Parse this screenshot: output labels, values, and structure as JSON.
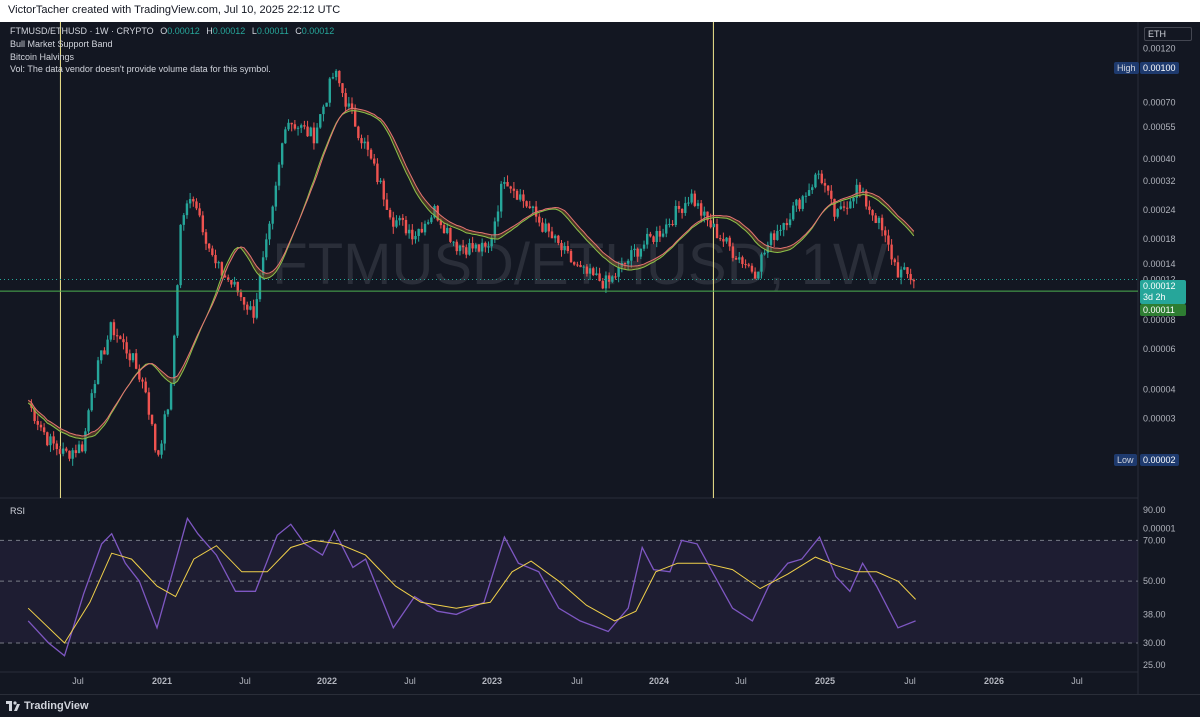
{
  "header": {
    "credit": "VictorTacher created with TradingView.com, Jul 10, 2025 22:12 UTC"
  },
  "legend": {
    "symbol": "FTMUSD/ETHUSD · 1W · CRYPTO",
    "o_label": "O",
    "o": "0.00012",
    "h_label": "H",
    "h": "0.00012",
    "l_label": "L",
    "l": "0.00011",
    "c_label": "C",
    "c": "0.00012",
    "line2": "Bull Market Support Band",
    "line3": "Bitcoin Halvings",
    "line4": "Vol: The data vendor doesn't provide volume data for this symbol."
  },
  "watermark": "FTMUSD/ETHUSD, 1W",
  "currency_badge": "ETH",
  "price_tags": {
    "high_label": "High",
    "high_value": "0.00100",
    "low_label": "Low",
    "low_value": "0.00002",
    "current": "0.00012",
    "countdown": "3d 2h",
    "support": "0.00011"
  },
  "rsi_label": "RSI",
  "footer": {
    "brand": "TradingView"
  },
  "colors": {
    "up": "#26a69a",
    "down": "#ef5350",
    "rsi": "#7e57c2",
    "rsi_ma": "#f0d04a",
    "halving": "#f0e68c",
    "support": "#4caf50",
    "band": "#8b5a2b"
  },
  "chart_data": [
    {
      "type": "candlestick",
      "title": "FTMUSD/ETHUSD · 1W · CRYPTO",
      "scale": "log",
      "y_ticks": [
        "0.00120",
        "0.00100",
        "0.00070",
        "0.00055",
        "0.00040",
        "0.00032",
        "0.00024",
        "0.00018",
        "0.00014",
        "0.00012",
        "0.00011",
        "0.00008",
        "0.00006",
        "0.00004",
        "0.00003",
        "0.00002",
        "0.00001"
      ],
      "x_ticks": [
        "Jul",
        "2021",
        "Jul",
        "2022",
        "Jul",
        "2023",
        "Jul",
        "2024",
        "Jul",
        "2025",
        "Jul",
        "2026",
        "Jul"
      ],
      "grid": false,
      "close_path": [
        [
          "2020-03-01",
          3.5e-05
        ],
        [
          "2020-04-15",
          2.4e-05
        ],
        [
          "2020-05-20",
          2.1e-05
        ],
        [
          "2020-07-01",
          2.3e-05
        ],
        [
          "2020-07-20",
          4.2e-05
        ],
        [
          "2020-09-01",
          7.5e-05
        ],
        [
          "2020-10-15",
          5.5e-05
        ],
        [
          "2020-11-15",
          4e-05
        ],
        [
          "2020-12-10",
          2e-05
        ],
        [
          "2021-01-10",
          4e-05
        ],
        [
          "2021-02-01",
          0.00022
        ],
        [
          "2021-03-01",
          0.00028
        ],
        [
          "2021-04-15",
          0.00014
        ],
        [
          "2021-06-01",
          0.00011
        ],
        [
          "2021-07-10",
          8.5e-05
        ],
        [
          "2021-08-20",
          0.00022
        ],
        [
          "2021-09-20",
          0.0006
        ],
        [
          "2021-10-20",
          0.00055
        ],
        [
          "2021-11-20",
          0.0005
        ],
        [
          "2022-01-05",
          0.00095
        ],
        [
          "2022-02-01",
          0.0007
        ],
        [
          "2022-03-15",
          0.00045
        ],
        [
          "2022-05-15",
          0.00022
        ],
        [
          "2022-07-01",
          0.00019
        ],
        [
          "2022-08-15",
          0.00024
        ],
        [
          "2022-10-01",
          0.00017
        ],
        [
          "2022-12-10",
          0.00016
        ],
        [
          "2023-01-15",
          0.00034
        ],
        [
          "2023-03-01",
          0.00026
        ],
        [
          "2023-05-01",
          0.00018
        ],
        [
          "2023-07-01",
          0.00013
        ],
        [
          "2023-09-01",
          0.000115
        ],
        [
          "2023-11-01",
          0.00016
        ],
        [
          "2024-01-01",
          0.0002
        ],
        [
          "2024-03-01",
          0.00028
        ],
        [
          "2024-04-01",
          0.00022
        ],
        [
          "2024-06-01",
          0.00016
        ],
        [
          "2024-07-20",
          0.00013
        ],
        [
          "2024-09-01",
          0.00019
        ],
        [
          "2024-11-01",
          0.00027
        ],
        [
          "2024-12-10",
          0.00035
        ],
        [
          "2025-01-15",
          0.00022
        ],
        [
          "2025-03-01",
          0.0003
        ],
        [
          "2025-04-15",
          0.00022
        ],
        [
          "2025-06-01",
          0.00013
        ],
        [
          "2025-07-10",
          0.00012
        ]
      ],
      "series": [
        {
          "name": "Bull Market Support Band",
          "type": "band"
        },
        {
          "name": "Bitcoin Halvings",
          "type": "vline",
          "x": [
            "2020-05-11",
            "2024-04-20"
          ]
        }
      ],
      "annotations": {
        "high": 0.001,
        "low": 2e-05,
        "last": 0.00012,
        "support_line": 0.00011
      }
    },
    {
      "type": "line",
      "title": "RSI",
      "y_ticks": [
        "90.00",
        "70.00",
        "50.00",
        "38.00",
        "30.00",
        "25.00"
      ],
      "bands": [
        30,
        50,
        70
      ],
      "ylim": [
        22,
        92
      ],
      "series": [
        {
          "name": "RSI",
          "points": [
            [
              "2020-03-01",
              36
            ],
            [
              "2020-04-15",
              30
            ],
            [
              "2020-05-20",
              27
            ],
            [
              "2020-07-01",
              45
            ],
            [
              "2020-08-10",
              68
            ],
            [
              "2020-09-01",
              74
            ],
            [
              "2020-10-01",
              58
            ],
            [
              "2020-11-01",
              50
            ],
            [
              "2020-12-10",
              34
            ],
            [
              "2021-01-15",
              55
            ],
            [
              "2021-02-15",
              84
            ],
            [
              "2021-03-10",
              74
            ],
            [
              "2021-04-20",
              62
            ],
            [
              "2021-06-01",
              46
            ],
            [
              "2021-07-15",
              46
            ],
            [
              "2021-09-01",
              73
            ],
            [
              "2021-10-01",
              80
            ],
            [
              "2021-11-01",
              68
            ],
            [
              "2021-12-10",
              62
            ],
            [
              "2022-01-05",
              76
            ],
            [
              "2022-02-15",
              56
            ],
            [
              "2022-03-15",
              60
            ],
            [
              "2022-05-15",
              34
            ],
            [
              "2022-07-01",
              44
            ],
            [
              "2022-08-20",
              39
            ],
            [
              "2022-10-01",
              38
            ],
            [
              "2022-12-01",
              42
            ],
            [
              "2023-01-15",
              72
            ],
            [
              "2023-02-15",
              58
            ],
            [
              "2023-04-01",
              54
            ],
            [
              "2023-05-15",
              40
            ],
            [
              "2023-07-01",
              36
            ],
            [
              "2023-09-01",
              33
            ],
            [
              "2023-10-15",
              40
            ],
            [
              "2023-11-15",
              66
            ],
            [
              "2023-12-10",
              55
            ],
            [
              "2024-01-15",
              54
            ],
            [
              "2024-02-10",
              70
            ],
            [
              "2024-03-15",
              68
            ],
            [
              "2024-04-15",
              55
            ],
            [
              "2024-06-01",
              40
            ],
            [
              "2024-07-15",
              36
            ],
            [
              "2024-08-20",
              48
            ],
            [
              "2024-10-01",
              58
            ],
            [
              "2024-11-01",
              60
            ],
            [
              "2024-12-10",
              72
            ],
            [
              "2025-01-15",
              52
            ],
            [
              "2025-02-15",
              46
            ],
            [
              "2025-03-15",
              58
            ],
            [
              "2025-04-15",
              48
            ],
            [
              "2025-06-01",
              34
            ],
            [
              "2025-07-10",
              36
            ]
          ]
        },
        {
          "name": "RSI MA",
          "points": [
            [
              "2020-03-01",
              40
            ],
            [
              "2020-05-20",
              30
            ],
            [
              "2020-07-15",
              42
            ],
            [
              "2020-09-01",
              63
            ],
            [
              "2020-10-15",
              60
            ],
            [
              "2020-12-10",
              48
            ],
            [
              "2021-01-20",
              44
            ],
            [
              "2021-03-01",
              60
            ],
            [
              "2021-04-20",
              67
            ],
            [
              "2021-06-15",
              54
            ],
            [
              "2021-08-10",
              54
            ],
            [
              "2021-10-01",
              66
            ],
            [
              "2021-11-20",
              70
            ],
            [
              "2022-01-15",
              68
            ],
            [
              "2022-03-15",
              62
            ],
            [
              "2022-05-20",
              48
            ],
            [
              "2022-07-15",
              42
            ],
            [
              "2022-10-01",
              40
            ],
            [
              "2022-12-15",
              42
            ],
            [
              "2023-02-01",
              54
            ],
            [
              "2023-03-15",
              59
            ],
            [
              "2023-05-15",
              50
            ],
            [
              "2023-07-15",
              41
            ],
            [
              "2023-09-15",
              36
            ],
            [
              "2023-11-01",
              39
            ],
            [
              "2023-12-15",
              54
            ],
            [
              "2024-02-01",
              58
            ],
            [
              "2024-04-01",
              58
            ],
            [
              "2024-06-01",
              55
            ],
            [
              "2024-08-01",
              47
            ],
            [
              "2024-10-01",
              53
            ],
            [
              "2024-12-01",
              61
            ],
            [
              "2025-01-15",
              57
            ],
            [
              "2025-03-01",
              54
            ],
            [
              "2025-04-15",
              54
            ],
            [
              "2025-06-01",
              50
            ],
            [
              "2025-07-10",
              43
            ]
          ]
        }
      ]
    }
  ]
}
